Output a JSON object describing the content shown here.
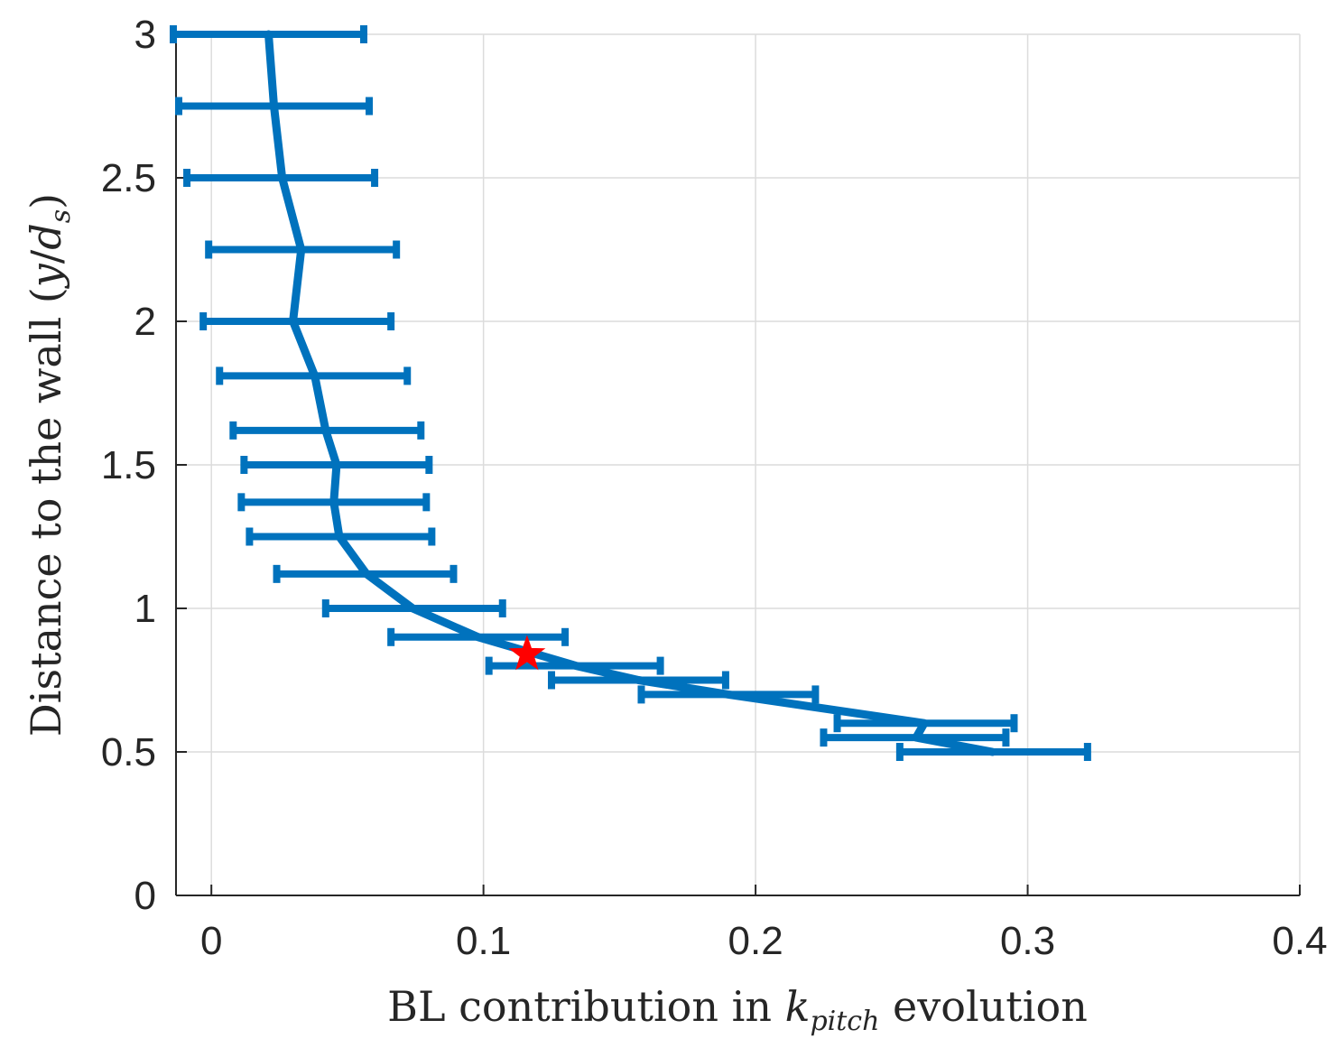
{
  "chart_data": {
    "type": "line",
    "title": "",
    "xlabel": {
      "prefix": "BL contribution in ",
      "var": "k",
      "sub": "pitch",
      "suffix": " evolution"
    },
    "ylabel": {
      "prefix": "Distance to the wall (",
      "var1": "y",
      "sep": "/",
      "var2": "d",
      "sub": "s",
      "suffix": ")"
    },
    "xlim": [
      -0.013,
      0.4
    ],
    "ylim": [
      0,
      3
    ],
    "xticks": [
      0,
      0.1,
      0.2,
      0.3,
      0.4
    ],
    "xtick_labels": [
      "0",
      "0.1",
      "0.2",
      "0.3",
      "0.4"
    ],
    "yticks": [
      0,
      0.5,
      1,
      1.5,
      2,
      2.5,
      3
    ],
    "ytick_labels": [
      "0",
      "0.5",
      "1",
      "1.5",
      "2",
      "2.5",
      "3"
    ],
    "grid": true,
    "series": [
      {
        "color": "#0072BD",
        "points": [
          {
            "y": 3.0,
            "x": 0.021,
            "xmin": -0.014,
            "xmax": 0.056
          },
          {
            "y": 2.75,
            "x": 0.023,
            "xmin": -0.012,
            "xmax": 0.058
          },
          {
            "y": 2.5,
            "x": 0.026,
            "xmin": -0.009,
            "xmax": 0.06
          },
          {
            "y": 2.25,
            "x": 0.033,
            "xmin": -0.001,
            "xmax": 0.068
          },
          {
            "y": 2.0,
            "x": 0.03,
            "xmin": -0.003,
            "xmax": 0.066
          },
          {
            "y": 1.81,
            "x": 0.038,
            "xmin": 0.003,
            "xmax": 0.072
          },
          {
            "y": 1.62,
            "x": 0.042,
            "xmin": 0.008,
            "xmax": 0.077
          },
          {
            "y": 1.5,
            "x": 0.046,
            "xmin": 0.012,
            "xmax": 0.08
          },
          {
            "y": 1.37,
            "x": 0.045,
            "xmin": 0.011,
            "xmax": 0.079
          },
          {
            "y": 1.25,
            "x": 0.047,
            "xmin": 0.014,
            "xmax": 0.081
          },
          {
            "y": 1.12,
            "x": 0.057,
            "xmin": 0.024,
            "xmax": 0.089
          },
          {
            "y": 1.0,
            "x": 0.074,
            "xmin": 0.042,
            "xmax": 0.107
          },
          {
            "y": 0.9,
            "x": 0.098,
            "xmin": 0.066,
            "xmax": 0.13
          },
          {
            "y": 0.8,
            "x": 0.134,
            "xmin": 0.102,
            "xmax": 0.165
          },
          {
            "y": 0.75,
            "x": 0.157,
            "xmin": 0.125,
            "xmax": 0.189
          },
          {
            "y": 0.7,
            "x": 0.19,
            "xmin": 0.158,
            "xmax": 0.222
          },
          {
            "y": 0.6,
            "x": 0.262,
            "xmin": 0.23,
            "xmax": 0.295
          },
          {
            "y": 0.55,
            "x": 0.259,
            "xmin": 0.225,
            "xmax": 0.292
          },
          {
            "y": 0.5,
            "x": 0.287,
            "xmin": 0.253,
            "xmax": 0.322
          }
        ]
      }
    ],
    "marker": {
      "x": 0.116,
      "y": 0.84,
      "shape": "star",
      "color": "#FF0000"
    }
  }
}
